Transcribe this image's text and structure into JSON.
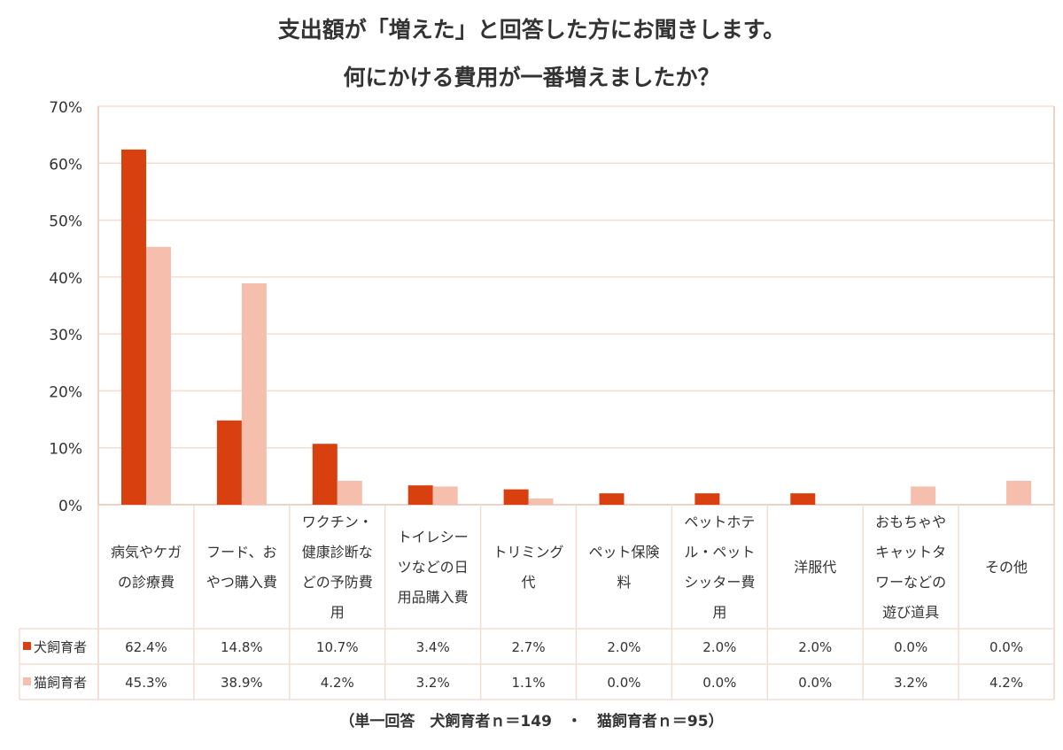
{
  "title_line1": "支出額が「増えた」と回答した方にお聞きします。",
  "title_line2": "何にかける費用が一番増えましたか？",
  "footnote": "（単一回答　犬飼育者ｎ＝149　・　猫飼育者ｎ＝95）",
  "colors": {
    "dog": "#d94010",
    "cat": "#f6bfad",
    "grid": "#f3ddd3",
    "axis": "#e9c4b3"
  },
  "chart_data": {
    "type": "bar",
    "title": "支出額が「増えた」と回答した方にお聞きします。 何にかける費用が一番増えましたか？",
    "ylim": [
      0,
      70
    ],
    "yticks": [
      "0%",
      "10%",
      "20%",
      "30%",
      "40%",
      "50%",
      "60%",
      "70%"
    ],
    "grid": true,
    "legend": "table-left",
    "categories": [
      [
        "病気やケガ",
        "の診療費"
      ],
      [
        "フード、お",
        "やつ購入費"
      ],
      [
        "ワクチン・",
        "健康診断な",
        "どの予防費",
        "用"
      ],
      [
        "トイレシー",
        "ツなどの日",
        "用品購入費"
      ],
      [
        "トリミング",
        "代"
      ],
      [
        "ペット保険",
        "料"
      ],
      [
        "ペットホテ",
        "ル・ペット",
        "シッター費",
        "用"
      ],
      [
        "洋服代"
      ],
      [
        "おもちゃや",
        "キャットタ",
        "ワーなどの",
        "遊び道具"
      ],
      [
        "その他"
      ]
    ],
    "series": [
      {
        "name": "犬飼育者",
        "values": [
          62.4,
          14.8,
          10.7,
          3.4,
          2.7,
          2.0,
          2.0,
          2.0,
          0.0,
          0.0
        ],
        "labels": [
          "62.4%",
          "14.8%",
          "10.7%",
          "3.4%",
          "2.7%",
          "2.0%",
          "2.0%",
          "2.0%",
          "0.0%",
          "0.0%"
        ]
      },
      {
        "name": "猫飼育者",
        "values": [
          45.3,
          38.9,
          4.2,
          3.2,
          1.1,
          0.0,
          0.0,
          0.0,
          3.2,
          4.2
        ],
        "labels": [
          "45.3%",
          "38.9%",
          "4.2%",
          "3.2%",
          "1.1%",
          "0.0%",
          "0.0%",
          "0.0%",
          "3.2%",
          "4.2%"
        ]
      }
    ]
  }
}
